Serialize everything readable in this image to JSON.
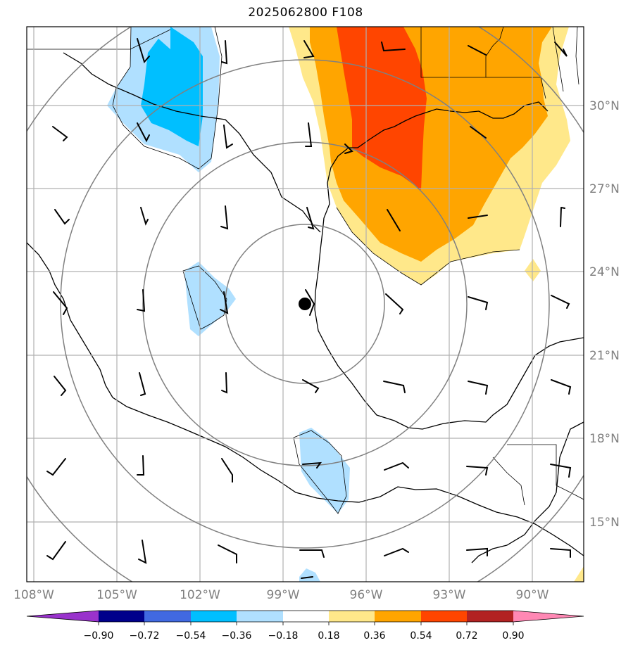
{
  "title": "2025062800 F108",
  "latitude_labels": [
    "30°N",
    "27°N",
    "24°N",
    "21°N",
    "18°N",
    "15°N"
  ],
  "longitude_labels": [
    "108°W",
    "105°W",
    "102°W",
    "99°W",
    "96°W",
    "93°W",
    "90°W"
  ],
  "colorbar": {
    "ticks": [
      "−0.90",
      "−0.72",
      "−0.54",
      "−0.36",
      "−0.18",
      "0.18",
      "0.36",
      "0.54",
      "0.72",
      "0.90"
    ],
    "colors": [
      "#9932cc",
      "#00008b",
      "#4169e1",
      "#00bfff",
      "#b0e0ff",
      "#ffffff",
      "#ffe88a",
      "#ffa500",
      "#ff4500",
      "#b22222",
      "#ff88b4"
    ]
  },
  "storm_center": {
    "lat": 22.9,
    "lon": -98.2
  },
  "range_rings": 4,
  "shading_colors": {
    "light_blue": "#b0e0ff",
    "blue": "#00bfff",
    "light_yellow": "#ffe88a",
    "orange": "#ffa500",
    "red_orange": "#ff4500"
  }
}
